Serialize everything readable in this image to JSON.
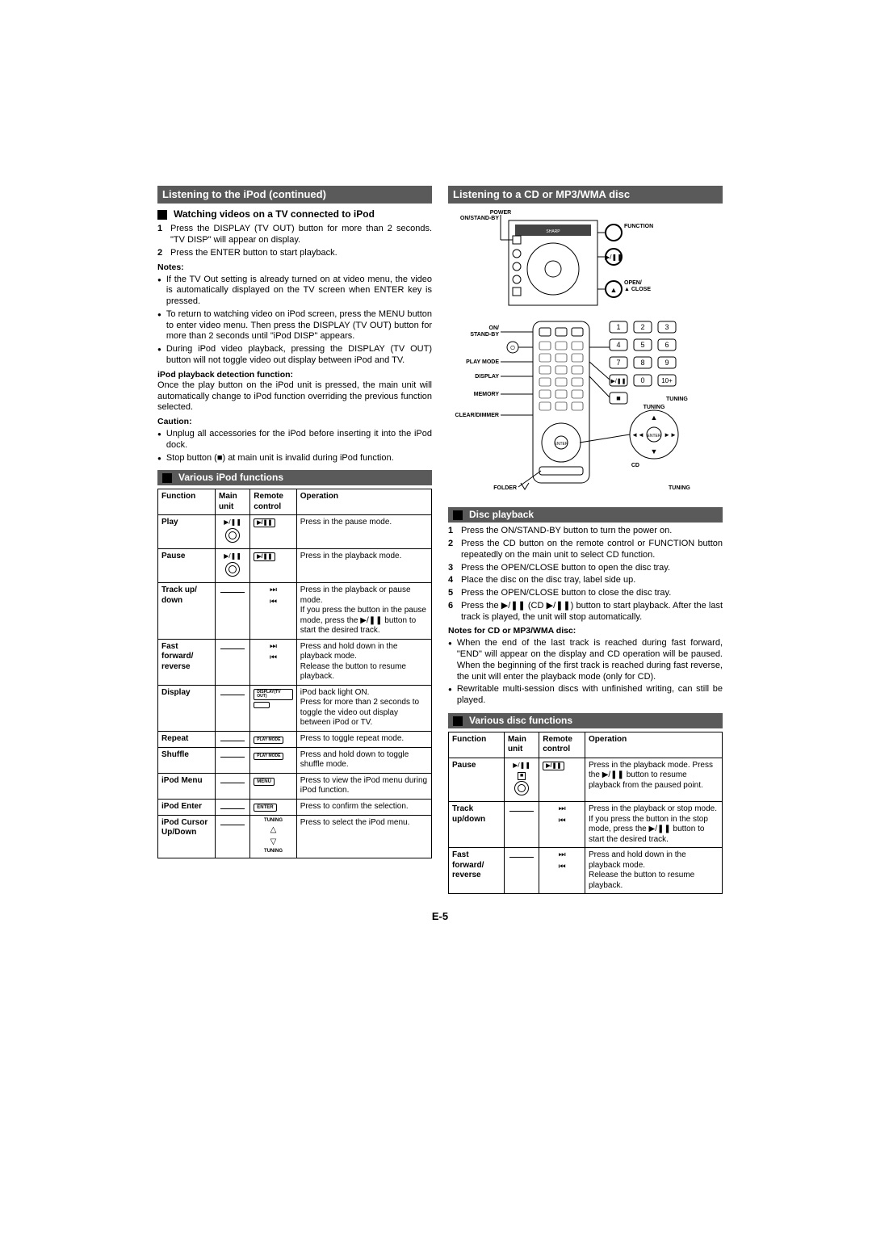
{
  "page_number": "E-5",
  "left": {
    "header": "Listening to the iPod (continued)",
    "section1": {
      "title": "Watching videos on a TV connected to iPod",
      "steps": [
        {
          "n": "1",
          "t": "Press the DISPLAY (TV OUT) button for more than 2 seconds. \"TV DISP\" will appear on display."
        },
        {
          "n": "2",
          "t": "Press the ENTER button to start playback."
        }
      ],
      "notes_label": "Notes:",
      "notes": [
        "If the TV Out setting is already turned on at video menu, the video is automatically displayed on the TV screen when ENTER key is pressed.",
        "To return to watching video on iPod screen, press the MENU button to enter video menu. Then press the DISPLAY (TV OUT) button for more than 2 seconds until \"iPod DISP\" appears.",
        "During iPod video playback, pressing the DISPLAY (TV OUT) button will not toggle video out display between iPod and TV."
      ],
      "detect_title": "iPod playback detection function:",
      "detect_text": "Once the play button on the iPod unit is pressed, the main unit will automatically change to iPod function overriding the previous function selected.",
      "caution_label": "Caution:",
      "cautions": [
        "Unplug all accessories for the iPod before inserting it into the iPod dock.",
        "Stop button (■) at main unit is invalid during iPod function."
      ]
    },
    "section2": {
      "title": "Various iPod functions",
      "table": {
        "headers": [
          "Function",
          "Main unit",
          "Remote control",
          "Operation"
        ],
        "rows": [
          {
            "fn": "Play",
            "main": "circle-pp",
            "remote": "box-pp",
            "op": "Press in the pause mode."
          },
          {
            "fn": "Pause",
            "main": "circle-pp",
            "remote": "box-pp",
            "op": "Press in the playback mode."
          },
          {
            "fn": "Track up/ down",
            "main": "dash",
            "remote": "skip",
            "op": "Press in the playback or pause mode.\nIf you press the button in the pause mode, press the ▶/❚❚ button to start the desired track."
          },
          {
            "fn": "Fast forward/ reverse",
            "main": "dash",
            "remote": "skip",
            "op": "Press and hold down in the playback mode.\nRelease the button to resume playback."
          },
          {
            "fn": "Display",
            "main": "dash",
            "remote": "box-display",
            "op": "iPod back light ON.\nPress for more than 2 seconds to toggle the video out display between iPod or TV."
          },
          {
            "fn": "Repeat",
            "main": "dash",
            "remote": "box-playmode",
            "op": "Press to toggle repeat mode."
          },
          {
            "fn": "Shuffle",
            "main": "dash",
            "remote": "box-playmode",
            "op": "Press and hold down to toggle shuffle mode."
          },
          {
            "fn": "iPod Menu",
            "main": "dash",
            "remote": "box-menu",
            "op": "Press to view the iPod menu during iPod function."
          },
          {
            "fn": "iPod Enter",
            "main": "dash",
            "remote": "box-enter",
            "op": "Press to confirm the selection."
          },
          {
            "fn": "iPod Cursor Up/Down",
            "main": "dash",
            "remote": "tuning-ud",
            "op": "Press to select the iPod menu."
          }
        ]
      }
    }
  },
  "right": {
    "header": "Listening to a CD or MP3/WMA disc",
    "diagram_labels": {
      "power": "POWER",
      "onstandby": "ON/STAND-BY",
      "function": "FUNCTION",
      "open_close": "OPEN/\nCLOSE",
      "on_standby": "ON/\nSTAND-BY",
      "play_mode": "PLAY MODE",
      "display": "DISPLAY",
      "memory": "MEMORY",
      "clear_dimmer": "CLEAR/DIMMER",
      "folder": "FOLDER",
      "tuning": "TUNING",
      "cd": "CD",
      "enter": "ENTER"
    },
    "section1": {
      "title": "Disc playback",
      "steps": [
        {
          "n": "1",
          "t": "Press the ON/STAND-BY button to turn the power on."
        },
        {
          "n": "2",
          "t": "Press the CD button on the remote control or FUNCTION button repeatedly on the main unit to select CD function."
        },
        {
          "n": "3",
          "t": "Press the OPEN/CLOSE button to open the disc tray."
        },
        {
          "n": "4",
          "t": "Place the disc on the disc tray, label side up."
        },
        {
          "n": "5",
          "t": "Press the OPEN/CLOSE button to close the disc tray."
        },
        {
          "n": "6",
          "t": "Press the ▶/❚❚ (CD ▶/❚❚) button to start playback. After the last track is played, the unit will stop automatically."
        }
      ],
      "notes_label": "Notes for CD or MP3/WMA disc:",
      "notes": [
        "When the end of the last track is reached during fast forward, \"END\" will appear on the display and CD operation will be paused. When the beginning of the first track is reached during fast reverse, the unit will enter the playback mode (only for CD).",
        "Rewritable multi-session discs with unfinished writing, can still be played."
      ]
    },
    "section2": {
      "title": "Various disc functions",
      "table": {
        "headers": [
          "Function",
          "Main unit",
          "Remote control",
          "Operation"
        ],
        "rows": [
          {
            "fn": "Pause",
            "main": "circle-pp-sq",
            "remote": "box-pp",
            "op": "Press in the playback mode. Press the ▶/❚❚ button to resume playback from the paused point."
          },
          {
            "fn": "Track up/down",
            "main": "dash",
            "remote": "skip",
            "op": "Press in the playback or stop mode.\nIf you press the button in the stop mode, press the ▶/❚❚ button to start the desired track."
          },
          {
            "fn": "Fast forward/ reverse",
            "main": "dash",
            "remote": "skip",
            "op": "Press and hold down in the playback mode.\nRelease the button to resume playback."
          }
        ]
      }
    }
  }
}
